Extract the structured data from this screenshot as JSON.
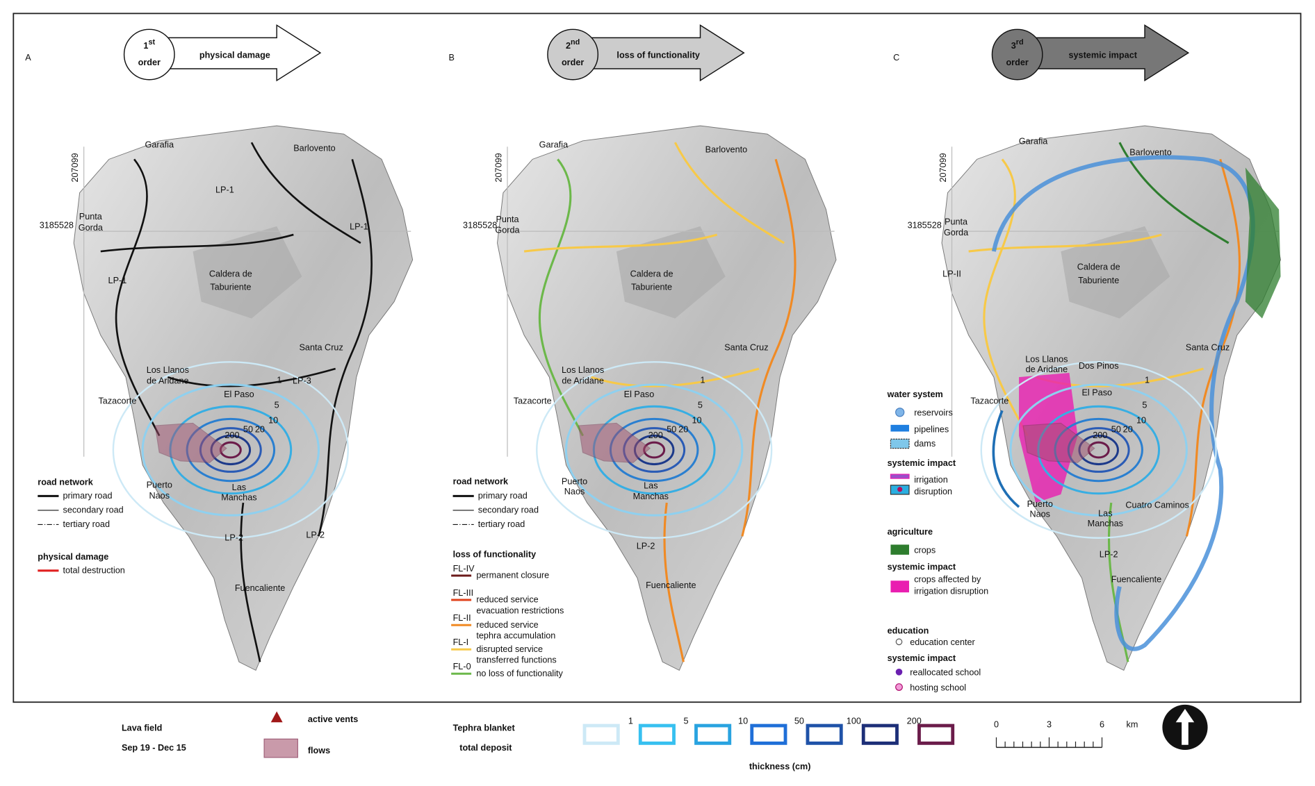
{
  "panels": [
    {
      "label": "A",
      "order_number": "1",
      "order_suffix": "st",
      "order_word": "order",
      "arrow_text": "physical  damage",
      "coordinates": [
        "207099",
        "3185528"
      ],
      "places": [
        "Garafia",
        "Barlovento",
        "LP-1",
        "Punta",
        "Gorda",
        "LP-1",
        "LP-1",
        "Caldera de",
        "Taburiente",
        "Santa Cruz",
        "Los Llanos",
        "de Aridane",
        "Tazacorte",
        "El Paso",
        "LP-3",
        "Puerto",
        "Naos",
        "Las",
        "Manchas",
        "LP-2",
        "LP-2",
        "Fuencaliente"
      ],
      "legend": {
        "road_title": "road network",
        "roads": [
          "primary road",
          "secondary road",
          "tertiary road"
        ],
        "damage_title": "physical damage",
        "damage": "total destruction"
      }
    },
    {
      "label": "B",
      "order_number": "2",
      "order_suffix": "nd",
      "order_word": "order",
      "arrow_text": "loss of functionality",
      "coordinates": [
        "207099",
        "3185528"
      ],
      "places": [
        "Garafia",
        "Barlovento",
        "Punta",
        "Gorda",
        "Caldera de",
        "Taburiente",
        "Santa Cruz",
        "Los Llanos",
        "de Aridane",
        "Tazacorte",
        "El Paso",
        "Puerto",
        "Naos",
        "Las",
        "Manchas",
        "LP-2",
        "Fuencaliente"
      ],
      "legend": {
        "road_title": "road network",
        "roads": [
          "primary road",
          "secondary road",
          "tertiary road"
        ],
        "fl_title": "loss of functionality",
        "fl": [
          {
            "code": "FL-IV",
            "text": [
              "permanent closure"
            ]
          },
          {
            "code": "FL-III",
            "text": [
              "reduced service",
              "evacuation restrictions"
            ]
          },
          {
            "code": "FL-II",
            "text": [
              "reduced service",
              "tephra accumulation"
            ]
          },
          {
            "code": "FL-I",
            "text": [
              "disrupted service",
              "transferred functions"
            ]
          },
          {
            "code": "FL-0",
            "text": [
              "no loss of functionality"
            ]
          }
        ]
      }
    },
    {
      "label": "C",
      "order_number": "3",
      "order_suffix": "rd",
      "order_word": "order",
      "arrow_text": "systemic impact",
      "coordinates": [
        "207099",
        "3185528"
      ],
      "places": [
        "Garafia",
        "Barlovento",
        "Punta",
        "Gorda",
        "LP-II",
        "Caldera de",
        "Taburiente",
        "Santa Cruz",
        "Los Llanos",
        "de Aridane",
        "Dos Pinos",
        "Tazacorte",
        "El Paso",
        "Cuatro Caminos",
        "Puerto",
        "Naos",
        "Las",
        "Manchas",
        "LP-2",
        "Fuencaliente"
      ],
      "legend": {
        "water_title": "water system",
        "water": [
          "reservoirs",
          "pipelines",
          "dams"
        ],
        "impact_title": "systemic impact",
        "irrigation": [
          "irrigation",
          "disruption"
        ],
        "agri_title": "agriculture",
        "crops": "crops",
        "impact_title2": "systemic impact",
        "crops_affected": [
          "crops affected by",
          "irrigation disruption"
        ],
        "edu_title": "education",
        "edu": "education center",
        "impact_title3": "systemic impact",
        "schools": [
          "reallocated school",
          "hosting school"
        ]
      }
    }
  ],
  "contour_labels": [
    "1",
    "5",
    "10",
    "20",
    "50",
    "200"
  ],
  "bottom": {
    "lava_title": "Lava field",
    "lava_dates": "Sep 19 - Dec 15",
    "vents": "active vents",
    "flows": "flows",
    "tephra_title": "Tephra blanket",
    "tephra_sub": "total deposit",
    "tephra_levels": [
      "1",
      "5",
      "10",
      "50",
      "100",
      "200"
    ],
    "thickness": "thickness (cm)",
    "scale": [
      "0",
      "3",
      "6"
    ],
    "scale_unit": "km"
  }
}
